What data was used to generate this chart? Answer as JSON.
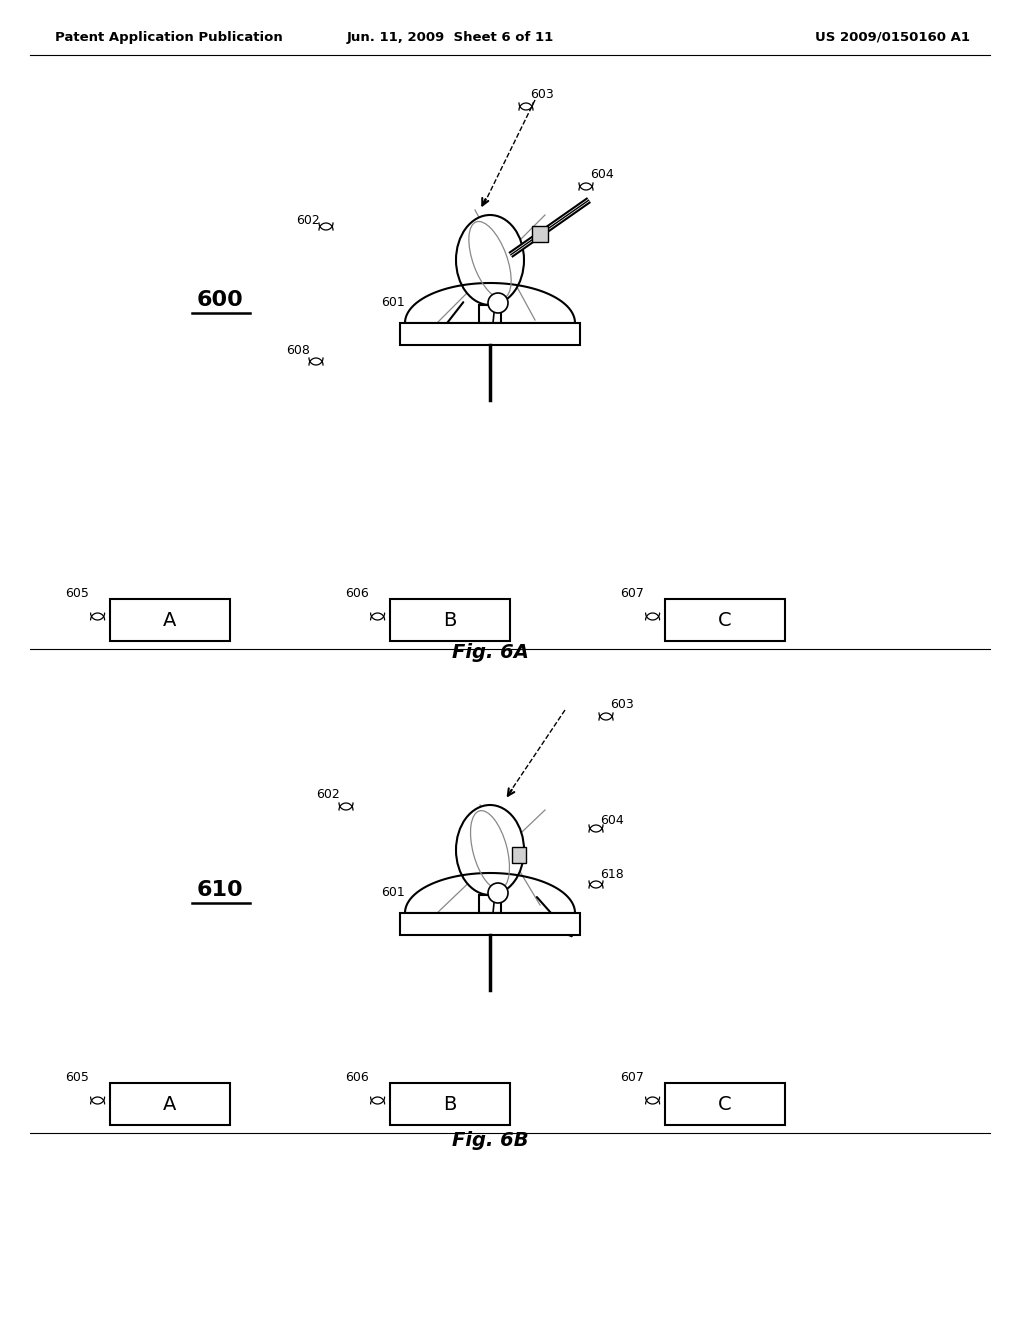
{
  "header_left": "Patent Application Publication",
  "header_mid": "Jun. 11, 2009  Sheet 6 of 11",
  "header_right": "US 2009/0150160 A1",
  "fig_a_label": "Fig. 6A",
  "fig_b_label": "Fig. 6B",
  "label_600": "600",
  "label_610": "610",
  "bg_color": "#ffffff",
  "line_color": "#000000",
  "text_color": "#000000"
}
